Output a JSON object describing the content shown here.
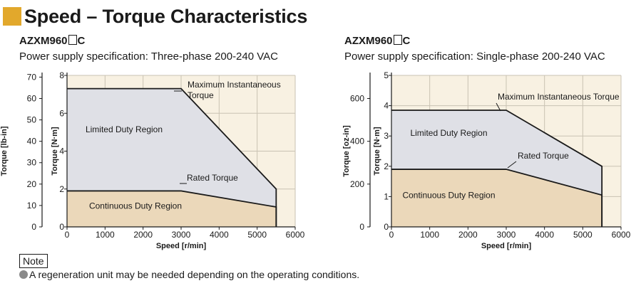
{
  "page": {
    "title": "Speed – Torque Characteristics",
    "accent_color": "#e2a82c",
    "note_label": "Note",
    "note_text": "A regeneration unit may be needed depending on the operating conditions."
  },
  "chart_data": [
    {
      "type": "area",
      "model": "AZXM960",
      "model_suffix": "C",
      "subtitle": "Power supply specification: Three-phase 200-240 VAC",
      "xlabel": "Speed [r/min]",
      "ylabel": "Torque [N·m]",
      "ylabel_secondary": "Torque [lb-in]",
      "xlim": [
        0,
        6000
      ],
      "ylim": [
        0,
        8
      ],
      "ylim_secondary": [
        0,
        70.8
      ],
      "x_ticks": [
        "0",
        "1000",
        "2000",
        "3000",
        "4000",
        "5000",
        "6000"
      ],
      "y_ticks": [
        "0",
        "2",
        "4",
        "6",
        "8"
      ],
      "y_ticks_secondary": [
        "0",
        "10",
        "20",
        "30",
        "40",
        "50",
        "60",
        "70"
      ],
      "grid": true,
      "series": [
        {
          "name": "Maximum Instantaneous Torque",
          "x": [
            0,
            3000,
            5500,
            5500
          ],
          "y": [
            7.3,
            7.3,
            2.0,
            0
          ]
        },
        {
          "name": "Rated Torque",
          "x": [
            0,
            3000,
            5500,
            5500
          ],
          "y": [
            1.9,
            1.9,
            1.05,
            0
          ]
        }
      ],
      "regions": [
        {
          "label": "Limited Duty Region",
          "color": "#dfe0e6"
        },
        {
          "label": "Continuous Duty Region",
          "color": "#ebd8ba"
        }
      ]
    },
    {
      "type": "area",
      "model": "AZXM960",
      "model_suffix": "C",
      "subtitle": "Power supply specification: Single-phase 200-240 VAC",
      "xlabel": "Speed [r/min]",
      "ylabel": "Torque [N·m]",
      "ylabel_secondary": "Torque [oz-in]",
      "xlim": [
        0,
        6000
      ],
      "ylim": [
        0,
        5
      ],
      "ylim_secondary": [
        0,
        708
      ],
      "x_ticks": [
        "0",
        "1000",
        "2000",
        "3000",
        "4000",
        "5000",
        "6000"
      ],
      "y_ticks": [
        "0",
        "1",
        "2",
        "3",
        "4",
        "5"
      ],
      "y_ticks_secondary": [
        "0",
        "200",
        "400",
        "600"
      ],
      "grid": true,
      "series": [
        {
          "name": "Maximum Instantaneous Torque",
          "x": [
            0,
            3000,
            5500,
            5500
          ],
          "y": [
            3.85,
            3.85,
            2.0,
            0
          ]
        },
        {
          "name": "Rated Torque",
          "x": [
            0,
            3000,
            5500,
            5500
          ],
          "y": [
            1.9,
            1.9,
            1.05,
            0
          ]
        }
      ],
      "regions": [
        {
          "label": "Limited Duty Region",
          "color": "#dfe0e6"
        },
        {
          "label": "Continuous Duty Region",
          "color": "#ebd8ba"
        }
      ]
    }
  ],
  "colors": {
    "plot_background": "#f8f1e2",
    "grid_line": "#c9c2b3",
    "curve": "#1a1a1a"
  }
}
